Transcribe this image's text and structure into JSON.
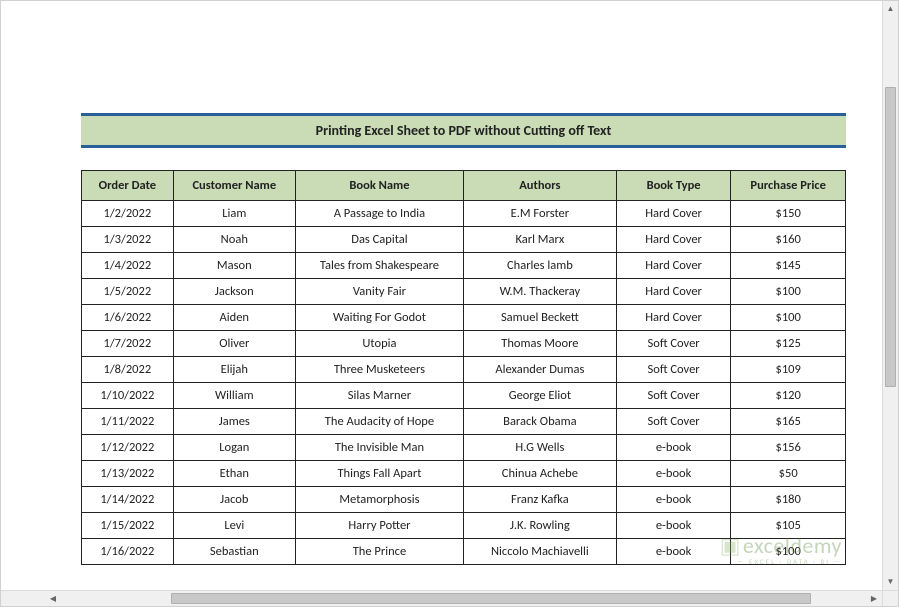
{
  "title": "Printing Excel Sheet to PDF without Cutting off Text",
  "columns": [
    "Order Date",
    "Customer Name",
    "Book Name",
    "Authors",
    "Book Type",
    "Purchase Price"
  ],
  "rows": [
    [
      "1/2/2022",
      "Liam",
      "A Passage to India",
      "E.M Forster",
      "Hard Cover",
      "$150"
    ],
    [
      "1/3/2022",
      "Noah",
      "Das Capital",
      "Karl Marx",
      "Hard Cover",
      "$160"
    ],
    [
      "1/4/2022",
      "Mason",
      "Tales from Shakespeare",
      "Charles lamb",
      "Hard Cover",
      "$145"
    ],
    [
      "1/5/2022",
      "Jackson",
      "Vanity Fair",
      "W.M. Thackeray",
      "Hard Cover",
      "$100"
    ],
    [
      "1/6/2022",
      "Aiden",
      "Waiting For Godot",
      "Samuel Beckett",
      "Hard Cover",
      "$100"
    ],
    [
      "1/7/2022",
      "Oliver",
      "Utopia",
      "Thomas Moore",
      "Soft Cover",
      "$125"
    ],
    [
      "1/8/2022",
      "Elijah",
      "Three Musketeers",
      "Alexander Dumas",
      "Soft Cover",
      "$109"
    ],
    [
      "1/10/2022",
      "William",
      "Silas Marner",
      "George Eliot",
      "Soft Cover",
      "$120"
    ],
    [
      "1/11/2022",
      "James",
      "The Audacity of Hope",
      "Barack Obama",
      "Soft Cover",
      "$165"
    ],
    [
      "1/12/2022",
      "Logan",
      "The Invisible Man",
      "H.G Wells",
      "e-book",
      "$156"
    ],
    [
      "1/13/2022",
      "Ethan",
      "Things Fall Apart",
      "Chinua Achebe",
      "e-book",
      "$50"
    ],
    [
      "1/14/2022",
      "Jacob",
      "Metamorphosis",
      "Franz Kafka",
      "e-book",
      "$180"
    ],
    [
      "1/15/2022",
      "Levi",
      "Harry Potter",
      "J.K. Rowling",
      "e-book",
      "$105"
    ],
    [
      "1/16/2022",
      "Sebastian",
      "The Prince",
      "Niccolo Machiavelli",
      "e-book",
      "$100"
    ]
  ],
  "watermark": {
    "brand": "exceldemy",
    "tagline": "— EXCEL · DATA · BI —"
  },
  "colors": {
    "header_bg": "#c9dcb5",
    "title_border": "#2a6099",
    "cell_border": "#222222",
    "scroll_bg": "#f0f0f0",
    "scroll_thumb": "#c8c8c8"
  }
}
